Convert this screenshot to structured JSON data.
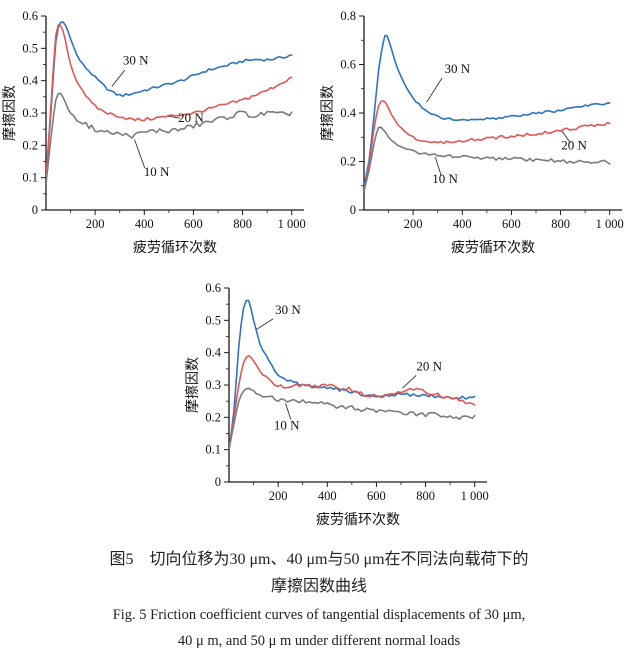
{
  "caption": {
    "zh_line1": "图5　切向位移为30 μm、40 μm与50 μm在不同法向载荷下的",
    "zh_line2": "摩擦因数曲线",
    "en_line1": "Fig. 5  Friction coefficient curves of tangential displacements of 30 μm,",
    "en_line2": "40 μ m, and 50 μ m under different normal loads"
  },
  "colors": {
    "load_30N": "#2b74c0",
    "load_20N": "#e25754",
    "load_10N": "#7b7b7b",
    "axis": "#1a1a1a"
  },
  "chart_data": [
    {
      "type": "line",
      "xlabel": "疲劳循环次数",
      "ylabel": "摩擦因数",
      "xlim": [
        0,
        1050
      ],
      "ylim": [
        0,
        0.6
      ],
      "xticks": [
        200,
        400,
        600,
        800,
        1000
      ],
      "xtick_labels": [
        "200",
        "400",
        "600",
        "800",
        "1 000"
      ],
      "xminor": [
        100,
        300,
        500,
        700,
        900
      ],
      "yticks": [
        0,
        0.1,
        0.2,
        0.3,
        0.4,
        0.5,
        0.6
      ],
      "ytick_labels": [
        "0",
        "0.1",
        "0.2",
        "0.3",
        "0.4",
        "0.5",
        "0.6"
      ],
      "yminor": [
        0.05,
        0.15,
        0.25,
        0.35,
        0.45,
        0.55
      ],
      "series": [
        {
          "name": "30 N",
          "color_key": "load_30N",
          "noise": 0.004,
          "x": [
            0,
            20,
            40,
            60,
            80,
            100,
            125,
            150,
            175,
            200,
            250,
            300,
            350,
            400,
            450,
            500,
            550,
            600,
            650,
            700,
            750,
            800,
            850,
            900,
            950,
            1000
          ],
          "y": [
            0.1,
            0.3,
            0.52,
            0.58,
            0.57,
            0.53,
            0.48,
            0.45,
            0.43,
            0.41,
            0.375,
            0.355,
            0.36,
            0.37,
            0.38,
            0.39,
            0.4,
            0.415,
            0.43,
            0.44,
            0.45,
            0.46,
            0.465,
            0.465,
            0.47,
            0.48
          ]
        },
        {
          "name": "20 N",
          "color_key": "load_20N",
          "noise": 0.005,
          "x": [
            0,
            20,
            40,
            60,
            80,
            100,
            125,
            150,
            175,
            200,
            250,
            300,
            350,
            400,
            450,
            500,
            550,
            600,
            650,
            700,
            750,
            800,
            850,
            900,
            950,
            1000
          ],
          "y": [
            0.09,
            0.32,
            0.54,
            0.57,
            0.52,
            0.45,
            0.4,
            0.37,
            0.34,
            0.32,
            0.3,
            0.29,
            0.28,
            0.28,
            0.285,
            0.29,
            0.295,
            0.3,
            0.31,
            0.32,
            0.33,
            0.34,
            0.355,
            0.37,
            0.39,
            0.41
          ]
        },
        {
          "name": "10 N",
          "color_key": "load_10N",
          "noise": 0.008,
          "x": [
            0,
            20,
            40,
            60,
            80,
            100,
            125,
            150,
            175,
            200,
            250,
            300,
            350,
            400,
            450,
            500,
            550,
            600,
            650,
            700,
            750,
            800,
            850,
            900,
            950,
            1000
          ],
          "y": [
            0.08,
            0.22,
            0.34,
            0.36,
            0.33,
            0.3,
            0.28,
            0.27,
            0.26,
            0.25,
            0.24,
            0.235,
            0.23,
            0.24,
            0.245,
            0.245,
            0.25,
            0.26,
            0.27,
            0.28,
            0.29,
            0.3,
            0.29,
            0.3,
            0.295,
            0.3
          ]
        }
      ],
      "annotations": [
        {
          "text": "30 N",
          "x": 365,
          "y": 0.45,
          "leader": [
            320,
            0.432,
            268,
            0.382
          ]
        },
        {
          "text": "20 N",
          "x": 590,
          "y": 0.272,
          "leader": [
            545,
            0.284,
            498,
            0.29
          ]
        },
        {
          "text": "10 N",
          "x": 450,
          "y": 0.105,
          "leader": [
            402,
            0.13,
            360,
            0.218
          ]
        }
      ]
    },
    {
      "type": "line",
      "xlabel": "疲劳循环次数",
      "ylabel": "摩擦因数",
      "xlim": [
        0,
        1050
      ],
      "ylim": [
        0,
        0.8
      ],
      "xticks": [
        200,
        400,
        600,
        800,
        1000
      ],
      "xtick_labels": [
        "200",
        "400",
        "600",
        "800",
        "1 000"
      ],
      "xminor": [
        100,
        300,
        500,
        700,
        900
      ],
      "yticks": [
        0,
        0.2,
        0.4,
        0.6,
        0.8
      ],
      "ytick_labels": [
        "0",
        "0.2",
        "0.4",
        "0.6",
        "0.8"
      ],
      "yminor": [
        0.1,
        0.3,
        0.5,
        0.7
      ],
      "series": [
        {
          "name": "30 N",
          "color_key": "load_30N",
          "noise": 0.005,
          "x": [
            0,
            20,
            40,
            60,
            80,
            90,
            100,
            125,
            150,
            175,
            200,
            250,
            300,
            350,
            400,
            450,
            500,
            550,
            600,
            650,
            700,
            750,
            800,
            850,
            900,
            950,
            1000
          ],
          "y": [
            0.1,
            0.2,
            0.38,
            0.58,
            0.7,
            0.72,
            0.7,
            0.62,
            0.55,
            0.5,
            0.46,
            0.41,
            0.385,
            0.375,
            0.37,
            0.37,
            0.375,
            0.38,
            0.385,
            0.39,
            0.4,
            0.405,
            0.41,
            0.42,
            0.43,
            0.435,
            0.44
          ]
        },
        {
          "name": "20 N",
          "color_key": "load_20N",
          "noise": 0.006,
          "x": [
            0,
            20,
            40,
            60,
            80,
            100,
            125,
            150,
            175,
            200,
            250,
            300,
            350,
            400,
            450,
            500,
            550,
            600,
            650,
            700,
            750,
            800,
            850,
            900,
            950,
            1000
          ],
          "y": [
            0.08,
            0.18,
            0.33,
            0.43,
            0.45,
            0.42,
            0.37,
            0.34,
            0.315,
            0.3,
            0.285,
            0.28,
            0.28,
            0.285,
            0.29,
            0.295,
            0.3,
            0.305,
            0.31,
            0.315,
            0.32,
            0.33,
            0.335,
            0.345,
            0.35,
            0.36
          ]
        },
        {
          "name": "10 N",
          "color_key": "load_10N",
          "noise": 0.007,
          "x": [
            0,
            20,
            40,
            60,
            80,
            100,
            125,
            150,
            175,
            200,
            250,
            300,
            350,
            400,
            450,
            500,
            550,
            600,
            650,
            700,
            750,
            800,
            850,
            900,
            950,
            1000
          ],
          "y": [
            0.08,
            0.16,
            0.27,
            0.34,
            0.33,
            0.3,
            0.275,
            0.26,
            0.25,
            0.24,
            0.23,
            0.225,
            0.22,
            0.22,
            0.215,
            0.215,
            0.21,
            0.21,
            0.21,
            0.205,
            0.205,
            0.2,
            0.2,
            0.2,
            0.2,
            0.195
          ]
        }
      ],
      "annotations": [
        {
          "text": "30 N",
          "x": 380,
          "y": 0.565,
          "leader": [
            318,
            0.545,
            255,
            0.445
          ]
        },
        {
          "text": "20 N",
          "x": 855,
          "y": 0.25,
          "leader": [
            840,
            0.277,
            806,
            0.325
          ]
        },
        {
          "text": "10 N",
          "x": 330,
          "y": 0.112,
          "leader": [
            315,
            0.14,
            290,
            0.218
          ]
        }
      ]
    },
    {
      "type": "line",
      "xlabel": "疲劳循环次数",
      "ylabel": "摩擦因数",
      "xlim": [
        0,
        1050
      ],
      "ylim": [
        0,
        0.6
      ],
      "xticks": [
        200,
        400,
        600,
        800,
        1000
      ],
      "xtick_labels": [
        "200",
        "400",
        "600",
        "800",
        "1 000"
      ],
      "xminor": [
        100,
        300,
        500,
        700,
        900
      ],
      "yticks": [
        0,
        0.1,
        0.2,
        0.3,
        0.4,
        0.5,
        0.6
      ],
      "ytick_labels": [
        "0",
        "0.1",
        "0.2",
        "0.3",
        "0.4",
        "0.5",
        "0.6"
      ],
      "yminor": [
        0.05,
        0.15,
        0.25,
        0.35,
        0.45,
        0.55
      ],
      "series": [
        {
          "name": "30 N",
          "color_key": "load_30N",
          "noise": 0.005,
          "x": [
            0,
            20,
            40,
            60,
            80,
            100,
            125,
            150,
            175,
            200,
            250,
            300,
            350,
            400,
            450,
            500,
            550,
            600,
            650,
            700,
            750,
            800,
            850,
            900,
            950,
            1000
          ],
          "y": [
            0.1,
            0.22,
            0.42,
            0.54,
            0.56,
            0.5,
            0.43,
            0.39,
            0.36,
            0.335,
            0.31,
            0.3,
            0.295,
            0.29,
            0.285,
            0.28,
            0.27,
            0.265,
            0.27,
            0.27,
            0.27,
            0.265,
            0.265,
            0.26,
            0.26,
            0.26
          ]
        },
        {
          "name": "20 N",
          "color_key": "load_20N",
          "noise": 0.006,
          "x": [
            0,
            20,
            40,
            60,
            80,
            100,
            125,
            150,
            175,
            200,
            250,
            300,
            350,
            400,
            450,
            500,
            550,
            600,
            650,
            700,
            750,
            800,
            850,
            900,
            950,
            1000
          ],
          "y": [
            0.1,
            0.2,
            0.3,
            0.37,
            0.39,
            0.375,
            0.345,
            0.325,
            0.31,
            0.3,
            0.295,
            0.3,
            0.295,
            0.3,
            0.29,
            0.285,
            0.27,
            0.265,
            0.27,
            0.28,
            0.285,
            0.28,
            0.27,
            0.26,
            0.25,
            0.24
          ]
        },
        {
          "name": "10 N",
          "color_key": "load_10N",
          "noise": 0.008,
          "x": [
            0,
            20,
            40,
            60,
            80,
            100,
            125,
            150,
            175,
            200,
            250,
            300,
            350,
            400,
            450,
            500,
            550,
            600,
            650,
            700,
            750,
            800,
            850,
            900,
            950,
            1000
          ],
          "y": [
            0.1,
            0.18,
            0.25,
            0.28,
            0.29,
            0.28,
            0.27,
            0.265,
            0.26,
            0.255,
            0.25,
            0.25,
            0.245,
            0.24,
            0.235,
            0.23,
            0.225,
            0.22,
            0.22,
            0.215,
            0.21,
            0.21,
            0.205,
            0.2,
            0.2,
            0.2
          ]
        }
      ],
      "annotations": [
        {
          "text": "30 N",
          "x": 240,
          "y": 0.52,
          "leader": [
            180,
            0.505,
            112,
            0.472
          ]
        },
        {
          "text": "20 N",
          "x": 815,
          "y": 0.345,
          "leader": [
            762,
            0.33,
            706,
            0.29
          ]
        },
        {
          "text": "10 N",
          "x": 235,
          "y": 0.162,
          "leader": [
            252,
            0.193,
            230,
            0.243
          ]
        }
      ]
    }
  ]
}
